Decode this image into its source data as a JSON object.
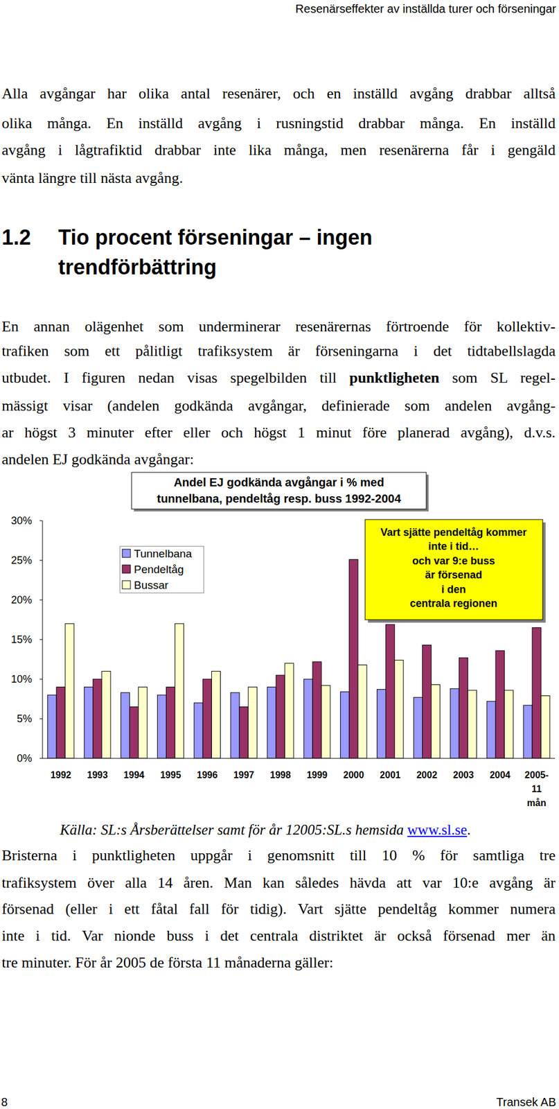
{
  "header": {
    "title": "Resenärseffekter av inställda turer och förseningar"
  },
  "paragraphs": [
    {
      "lines": [
        "Alla avgångar har olika antal resenärer, och en inställd avgång drabbar alltså",
        "olika många. En inställd avgång i rusningstid drabbar många. En inställd",
        "avgång i lågtrafiktid drabbar inte lika många, men resenärerna får i gengäld",
        "vänta längre till nästa avgång."
      ]
    },
    {
      "lines": [
        "En annan olägenhet som underminerar resenärernas förtroende för kollektiv-",
        "trafiken som ett pålitligt trafiksystem är förseningarna i det tidtabellslagda",
        [
          {
            "text": "utbudet. I figuren nedan visas spegelbilden till "
          },
          {
            "text": "punktligheten",
            "bold": true
          },
          {
            "text": " som SL regel-"
          }
        ],
        "mässigt visar (andelen godkända avgångar, definierade som andelen avgång-",
        "ar högst 3 minuter efter eller och högst 1 minut före planerad avgång), d.v.s.",
        "andelen EJ godkända avgångar:"
      ]
    },
    {
      "lines": [
        "Bristerna i punktligheten uppgår i genomsnitt till 10 % för samtliga tre",
        "trafiksystem över alla 14 åren. Man kan således hävda att var 10:e avgång är",
        "försenad (eller i ett fåtal fall för tidig). Vart sjätte pendeltåg kommer numera",
        "inte i tid. Var nionde buss i det centrala distriktet är också försenad mer än",
        "tre minuter. För år 2005 de första 11 månaderna gäller:"
      ]
    }
  ],
  "heading": {
    "number": "1.2",
    "lines": [
      "Tio procent förseningar – ingen",
      "trendförbättring"
    ]
  },
  "chart_data": {
    "type": "bar",
    "title": "Andel EJ godkända avgångar i % med\ntunnelbana, pendeltåg resp. buss 1992-2004",
    "categories": [
      "1992",
      "1993",
      "1994",
      "1995",
      "1996",
      "1997",
      "1998",
      "1999",
      "2000",
      "2001",
      "2002",
      "2003",
      "2004",
      "2005-\n11\nmån"
    ],
    "series": [
      {
        "name": "Tunnelbana",
        "color": "#9999ff",
        "values": [
          8.0,
          9.0,
          8.3,
          8.0,
          7.0,
          8.3,
          9.0,
          10.0,
          8.4,
          8.7,
          7.7,
          8.8,
          7.2,
          6.7
        ]
      },
      {
        "name": "Pendeltåg",
        "color": "#993366",
        "values": [
          9.0,
          10.0,
          6.5,
          9.0,
          10.0,
          6.5,
          10.5,
          12.2,
          25.1,
          16.9,
          14.3,
          12.7,
          13.6,
          16.5
        ]
      },
      {
        "name": "Bussar",
        "color": "#ffffcc",
        "values": [
          17.0,
          11.0,
          9.0,
          17.0,
          11.0,
          9.0,
          12.0,
          9.2,
          11.8,
          12.4,
          9.3,
          8.6,
          8.6,
          7.9
        ]
      }
    ],
    "ylim": [
      0,
      30
    ],
    "yticks": [
      {
        "value": 0,
        "label": "0%"
      },
      {
        "value": 5,
        "label": "5%"
      },
      {
        "value": 10,
        "label": "10%"
      },
      {
        "value": 15,
        "label": "15%"
      },
      {
        "value": 20,
        "label": "20%"
      },
      {
        "value": 25,
        "label": "25%"
      },
      {
        "value": 30,
        "label": "30%"
      }
    ],
    "grid": false,
    "legend": "top-left",
    "annotations": [
      {
        "text": "Vart sjätte pendeltåg kommer\ninte i tid…\noch var 9:e buss\när försenad\ni den\ncentrala regionen"
      }
    ]
  },
  "source": [
    {
      "text": "Källa: SL:s Årsberättelser samt för år 12005:SL.s hemsida ",
      "italic": true
    },
    {
      "text": "www.sl.se",
      "link": true
    },
    {
      "text": "."
    }
  ],
  "footer": {
    "page": "8",
    "company": "Transek AB"
  }
}
